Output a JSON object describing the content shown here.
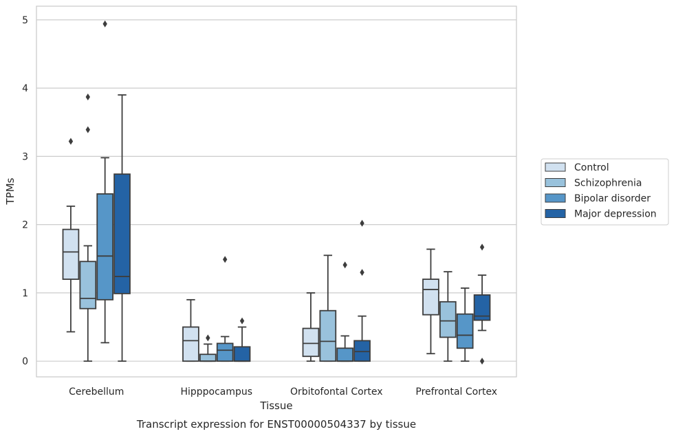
{
  "chart_data": {
    "type": "box",
    "caption": "Transcript expression for ENST00000504337 by tissue",
    "xlabel": "Tissue",
    "ylabel": "TPMs",
    "ylim": [
      -0.23,
      5.2
    ],
    "yticks": [
      0,
      1,
      2,
      3,
      4,
      5
    ],
    "categories": [
      "Cerebellum",
      "Hipppocampus",
      "Orbitofontal Cortex",
      "Prefrontal Cortex"
    ],
    "grid": "horizontal",
    "legend_position": "right",
    "series": [
      {
        "name": "Control",
        "color": "#d1e1f0",
        "boxes": [
          {
            "whislo": 0.43,
            "q1": 1.2,
            "med": 1.6,
            "q3": 1.93,
            "whishi": 2.27,
            "fliers": [
              3.22
            ]
          },
          {
            "whislo": 0.0,
            "q1": 0.0,
            "med": 0.3,
            "q3": 0.5,
            "whishi": 0.9,
            "fliers": []
          },
          {
            "whislo": 0.0,
            "q1": 0.07,
            "med": 0.26,
            "q3": 0.48,
            "whishi": 1.0,
            "fliers": []
          },
          {
            "whislo": 0.11,
            "q1": 0.68,
            "med": 1.05,
            "q3": 1.2,
            "whishi": 1.64,
            "fliers": []
          }
        ]
      },
      {
        "name": "Schizophrenia",
        "color": "#99c2dc",
        "boxes": [
          {
            "whislo": 0.0,
            "q1": 0.77,
            "med": 0.92,
            "q3": 1.46,
            "whishi": 1.69,
            "fliers": [
              3.39,
              3.87
            ]
          },
          {
            "whislo": 0.0,
            "q1": 0.0,
            "med": 0.0,
            "q3": 0.1,
            "whishi": 0.25,
            "fliers": [
              0.34
            ]
          },
          {
            "whislo": 0.0,
            "q1": 0.0,
            "med": 0.29,
            "q3": 0.74,
            "whishi": 1.55,
            "fliers": []
          },
          {
            "whislo": 0.0,
            "q1": 0.35,
            "med": 0.59,
            "q3": 0.87,
            "whishi": 1.31,
            "fliers": []
          }
        ]
      },
      {
        "name": "Bipolar disorder",
        "color": "#5696c8",
        "boxes": [
          {
            "whislo": 0.27,
            "q1": 0.9,
            "med": 1.54,
            "q3": 2.45,
            "whishi": 2.98,
            "fliers": [
              4.94
            ]
          },
          {
            "whislo": 0.0,
            "q1": 0.0,
            "med": 0.16,
            "q3": 0.26,
            "whishi": 0.36,
            "fliers": [
              1.49
            ]
          },
          {
            "whislo": 0.0,
            "q1": 0.0,
            "med": 0.0,
            "q3": 0.19,
            "whishi": 0.37,
            "fliers": [
              1.41
            ]
          },
          {
            "whislo": 0.0,
            "q1": 0.19,
            "med": 0.38,
            "q3": 0.69,
            "whishi": 1.07,
            "fliers": []
          }
        ]
      },
      {
        "name": "Major depression",
        "color": "#2463a5",
        "boxes": [
          {
            "whislo": 0.0,
            "q1": 0.99,
            "med": 1.24,
            "q3": 2.74,
            "whishi": 3.9,
            "fliers": []
          },
          {
            "whislo": 0.0,
            "q1": 0.0,
            "med": 0.0,
            "q3": 0.21,
            "whishi": 0.5,
            "fliers": [
              0.59
            ]
          },
          {
            "whislo": 0.0,
            "q1": 0.0,
            "med": 0.14,
            "q3": 0.3,
            "whishi": 0.66,
            "fliers": [
              1.3,
              2.02
            ]
          },
          {
            "whislo": 0.45,
            "q1": 0.6,
            "med": 0.66,
            "q3": 0.97,
            "whishi": 1.26,
            "fliers": [
              0.0,
              1.67
            ]
          }
        ]
      }
    ]
  }
}
